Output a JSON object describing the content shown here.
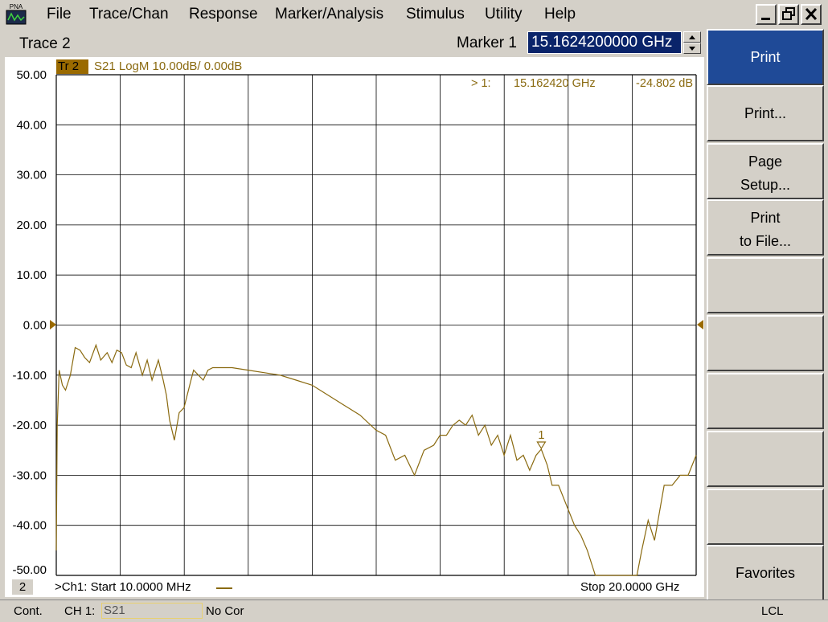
{
  "app": {
    "icon_label": "PNA"
  },
  "menu": [
    "File",
    "Trace/Chan",
    "Response",
    "Marker/Analysis",
    "Stimulus",
    "Utility",
    "Help"
  ],
  "window_controls": {
    "minimize": "_",
    "restore": "❐",
    "close": "✕"
  },
  "trace_bar": {
    "trace_name": "Trace 2",
    "marker_label": "Marker 1",
    "marker_value": "15.1624200000 GHz"
  },
  "trace_header": {
    "tag": "Tr  2",
    "definition": "S21 LogM 10.00dB/  0.00dB"
  },
  "marker_readout": {
    "id": "> 1:",
    "frequency": "15.162420 GHz",
    "value": "-24.802 dB",
    "flag": "1"
  },
  "footer": {
    "channel_badge": "2",
    "start": ">Ch1: Start  10.0000 MHz",
    "stop": "Stop  20.0000 GHz"
  },
  "softkeys": [
    {
      "lines": [
        "Print"
      ],
      "active": true
    },
    {
      "lines": [
        "Print..."
      ]
    },
    {
      "lines": [
        "Page",
        "Setup..."
      ]
    },
    {
      "lines": [
        "Print",
        "to File..."
      ]
    },
    {
      "lines": []
    },
    {
      "lines": []
    },
    {
      "lines": []
    },
    {
      "lines": []
    },
    {
      "lines": []
    },
    {
      "lines": [
        "Favorites"
      ]
    }
  ],
  "status_bar": {
    "mode": "Cont.",
    "channel": "CH 1:",
    "parameter": "S21",
    "correction": "No Cor",
    "remote": "LCL"
  },
  "colors": {
    "trace": "#8a6a10",
    "active_softkey": "#1f4a97",
    "marker_field": "#0a246a"
  },
  "chart_data": {
    "type": "line",
    "title": "",
    "xlabel": "",
    "ylabel": "",
    "x_unit": "GHz",
    "y_unit": "dB",
    "xlim": [
      0.01,
      20.0
    ],
    "ylim": [
      -50,
      50
    ],
    "y_ticks": [
      "50.00",
      "40.00",
      "30.00",
      "20.00",
      "10.00",
      "0.00",
      "-10.00",
      "-20.00",
      "-30.00",
      "-40.00",
      "-50.00"
    ],
    "reference_level": 0.0,
    "grid": true,
    "series": [
      {
        "x": [
          0.01,
          0.04,
          0.1,
          0.2,
          0.3,
          0.45,
          0.6,
          0.75,
          0.9,
          1.05,
          1.25,
          1.4,
          1.6,
          1.75,
          1.9,
          2.05,
          2.2,
          2.35,
          2.5,
          2.7,
          2.85,
          3.0,
          3.2,
          3.35,
          3.45,
          3.55,
          3.7,
          3.85,
          4.0,
          4.2,
          4.3,
          4.6,
          4.75,
          4.9,
          5.05,
          5.25,
          5.5,
          6.0,
          6.5,
          7.0,
          7.5,
          8.0,
          8.5,
          9.0,
          9.5,
          10.0,
          10.3,
          10.6,
          10.9,
          11.2,
          11.5,
          11.8,
          12.0,
          12.2,
          12.4,
          12.6,
          12.8,
          13.0,
          13.2,
          13.4,
          13.6,
          13.8,
          14.0,
          14.2,
          14.4,
          14.6,
          14.8,
          15.0,
          15.16,
          15.35,
          15.5,
          15.7,
          15.95,
          16.2,
          16.4,
          16.6,
          16.85,
          17.05,
          17.3,
          17.5,
          17.7,
          17.85,
          18.0,
          18.15,
          18.3,
          18.5,
          18.7,
          19.0,
          19.25,
          19.5,
          19.75,
          20.0
        ],
        "values": [
          -45.0,
          -20.0,
          -9.0,
          -12.0,
          -13.0,
          -10.0,
          -4.5,
          -5.0,
          -6.5,
          -7.5,
          -4.0,
          -7.0,
          -5.5,
          -7.5,
          -5.0,
          -5.5,
          -8.0,
          -8.5,
          -5.5,
          -10.0,
          -7.0,
          -11.0,
          -7.0,
          -11.0,
          -14.0,
          -19.0,
          -23.0,
          -17.5,
          -16.5,
          -11.5,
          -9.0,
          -11.0,
          -9.0,
          -8.5,
          -8.5,
          -8.5,
          -8.5,
          -9.0,
          -9.5,
          -10.0,
          -11.0,
          -12.0,
          -14.0,
          -16.0,
          -18.0,
          -21.0,
          -22.0,
          -27.0,
          -26.0,
          -30.0,
          -25.0,
          -24.0,
          -22.0,
          -22.0,
          -20.0,
          -19.0,
          -20.0,
          -18.0,
          -22.0,
          -20.0,
          -24.0,
          -22.0,
          -26.0,
          -22.0,
          -27.0,
          -26.0,
          -29.0,
          -26.0,
          -24.8,
          -28.0,
          -32.0,
          -32.0,
          -36.0,
          -40.0,
          -42.0,
          -45.0,
          -50.0,
          -50.0,
          -50.0,
          -50.0,
          -50.0,
          -50.0,
          -50.0,
          -50.0,
          -45.0,
          -39.0,
          -43.0,
          -32.0,
          -32.0,
          -30.0,
          -30.0,
          -26.0
        ]
      }
    ],
    "markers": [
      {
        "name": "1",
        "x": 15.16242,
        "y": -24.802
      }
    ]
  }
}
